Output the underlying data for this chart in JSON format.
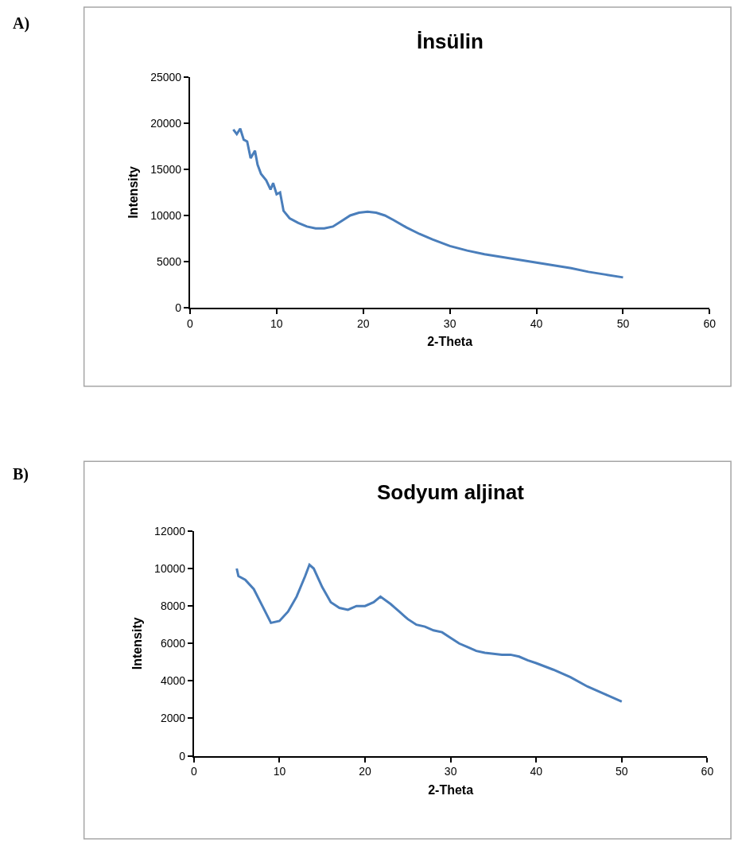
{
  "chart_data": [
    {
      "type": "line",
      "title": "İnsülin",
      "xlabel": "2-Theta",
      "ylabel": "Intensity",
      "annotations": [
        "A)"
      ],
      "xlim": [
        0,
        60
      ],
      "xticks": [
        0,
        10,
        20,
        30,
        40,
        50,
        60
      ],
      "ylim": [
        0,
        25000
      ],
      "yticks": [
        0,
        5000,
        10000,
        15000,
        20000,
        25000
      ],
      "marker": "none",
      "line_style": "solid",
      "series": [
        {
          "color": "#4a7ebb",
          "x": [
            5,
            5.4,
            5.8,
            6.2,
            6.6,
            7,
            7.5,
            7.8,
            8.2,
            8.8,
            9.3,
            9.6,
            10,
            10.4,
            10.8,
            11.5,
            12.5,
            13.5,
            14.5,
            15.5,
            16.5,
            17.5,
            18.5,
            19.5,
            20.5,
            21.5,
            22.5,
            23.5,
            25,
            26.5,
            28,
            30,
            32,
            34,
            36,
            38,
            40,
            42,
            44,
            46,
            48,
            50
          ],
          "values": [
            19300,
            18800,
            19400,
            18200,
            18000,
            16200,
            17000,
            15500,
            14500,
            13800,
            12800,
            13500,
            12300,
            12500,
            10500,
            9700,
            9200,
            8800,
            8600,
            8600,
            8800,
            9400,
            10000,
            10300,
            10400,
            10300,
            10000,
            9500,
            8700,
            8000,
            7400,
            6700,
            6200,
            5800,
            5500,
            5200,
            4900,
            4600,
            4300,
            3900,
            3600,
            3300
          ]
        }
      ]
    },
    {
      "type": "line",
      "title": "Sodyum aljinat",
      "xlabel": "2-Theta",
      "ylabel": "Intensity",
      "annotations": [
        "B)"
      ],
      "xlim": [
        0,
        60
      ],
      "xticks": [
        0,
        10,
        20,
        30,
        40,
        50,
        60
      ],
      "ylim": [
        0,
        12000
      ],
      "yticks": [
        0,
        2000,
        4000,
        6000,
        8000,
        10000,
        12000
      ],
      "marker": "none",
      "line_style": "solid",
      "series": [
        {
          "color": "#4a7ebb",
          "x": [
            5,
            5.2,
            6,
            7,
            8,
            9,
            10,
            11,
            12,
            13,
            13.5,
            14,
            15,
            16,
            17,
            18,
            19,
            20,
            21,
            21.8,
            23,
            24,
            25,
            26,
            27,
            28,
            29,
            30,
            31,
            32,
            33,
            34,
            35,
            36,
            37,
            38,
            39,
            40,
            42,
            44,
            46,
            48,
            50
          ],
          "values": [
            10000,
            9600,
            9400,
            8900,
            8000,
            7100,
            7200,
            7700,
            8500,
            9600,
            10200,
            10000,
            9000,
            8200,
            7900,
            7800,
            8000,
            8000,
            8200,
            8500,
            8100,
            7700,
            7300,
            7000,
            6900,
            6700,
            6600,
            6300,
            6000,
            5800,
            5600,
            5500,
            5450,
            5400,
            5400,
            5300,
            5100,
            4950,
            4600,
            4200,
            3700,
            3300,
            2900
          ]
        }
      ]
    }
  ]
}
